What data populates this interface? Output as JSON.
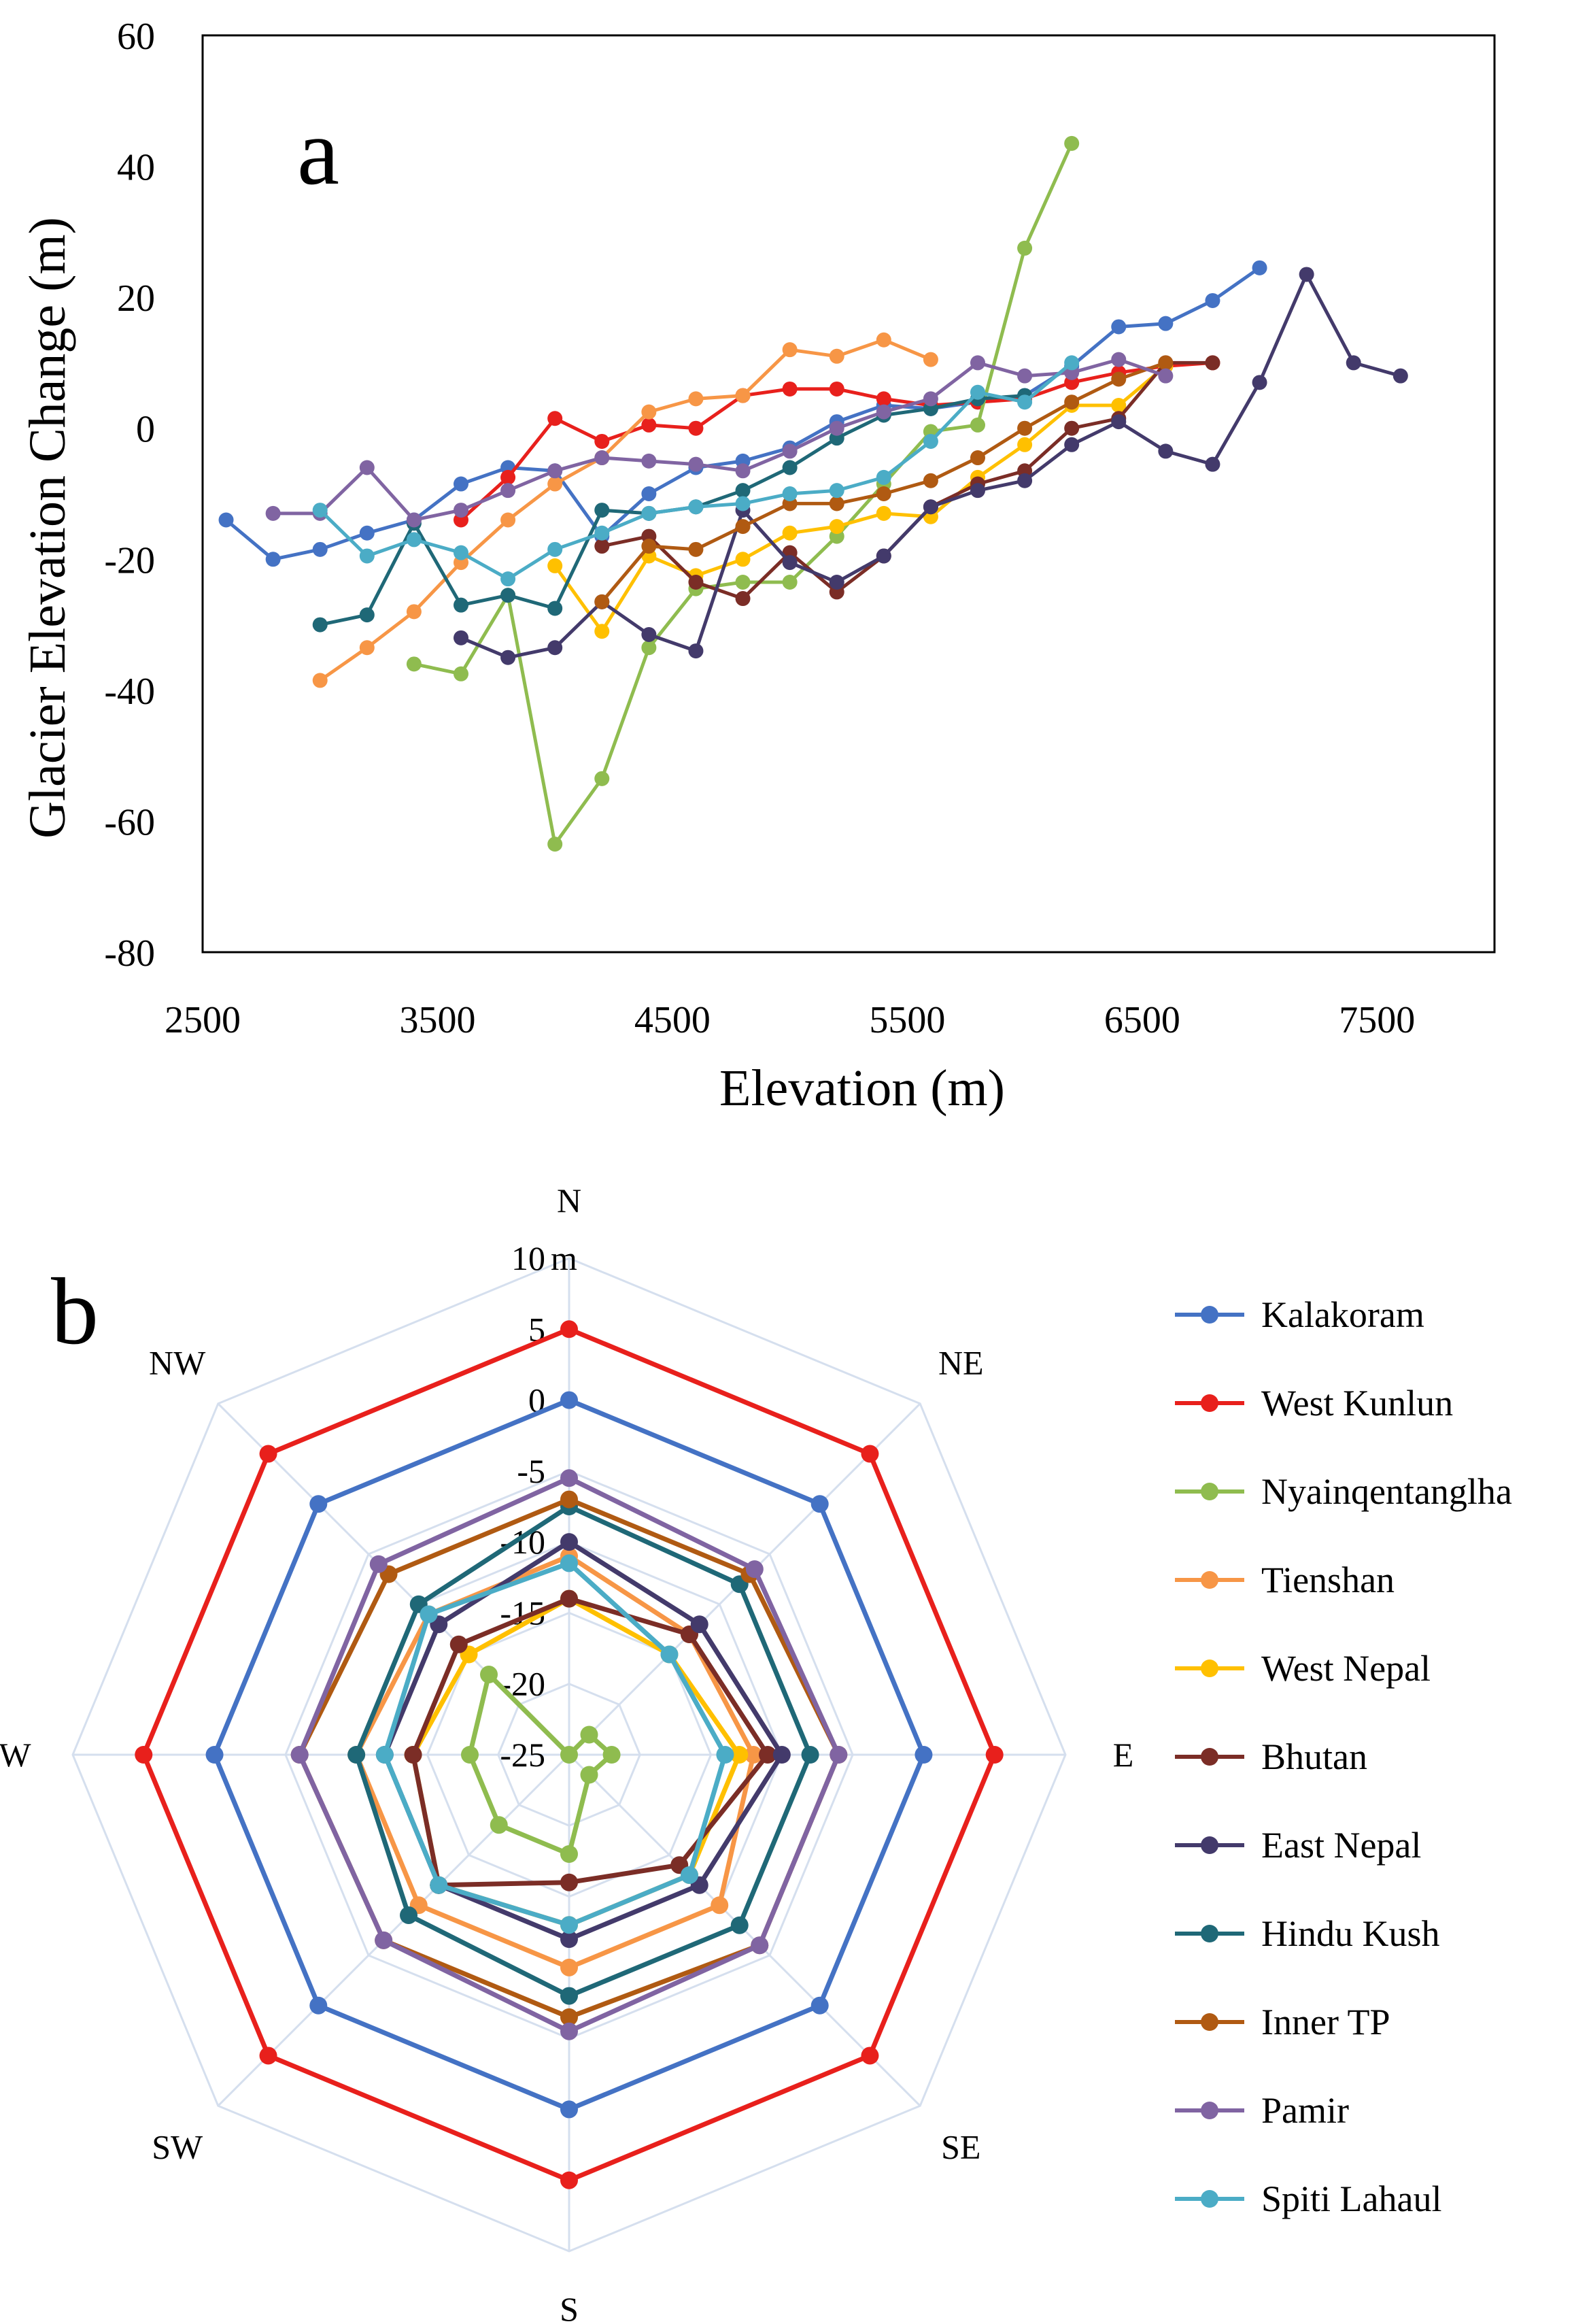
{
  "chart_data": [
    {
      "type": "line",
      "panel_label": "a",
      "xlabel": "Elevation (m)",
      "ylabel": "Glacier Elevation Change (m)",
      "xlim": [
        2500,
        8000
      ],
      "ylim": [
        -80,
        60
      ],
      "xticks": [
        2500,
        3500,
        4500,
        5500,
        6500,
        7500
      ],
      "yticks": [
        -80,
        -60,
        -40,
        -20,
        0,
        20,
        40,
        60
      ],
      "grid": false,
      "series": [
        {
          "name": "Kalakoram",
          "color": "#4472C4",
          "points": [
            [
              2600,
              -14
            ],
            [
              2800,
              -20
            ],
            [
              3000,
              -18.5
            ],
            [
              3200,
              -16
            ],
            [
              3400,
              -14
            ],
            [
              3600,
              -8.5
            ],
            [
              3800,
              -6
            ],
            [
              4000,
              -6.5
            ],
            [
              4200,
              -16.5
            ],
            [
              4400,
              -10
            ],
            [
              4600,
              -6
            ],
            [
              4800,
              -5
            ],
            [
              5000,
              -3
            ],
            [
              5200,
              1
            ],
            [
              5400,
              3.5
            ],
            [
              5600,
              3
            ],
            [
              5800,
              4
            ],
            [
              6000,
              5
            ],
            [
              6200,
              9.5
            ],
            [
              6400,
              15.5
            ],
            [
              6600,
              16
            ],
            [
              6800,
              19.5
            ],
            [
              7000,
              24.5
            ]
          ]
        },
        {
          "name": "West Kunlun",
          "color": "#E8201C",
          "points": [
            [
              3600,
              -14
            ],
            [
              3800,
              -7.5
            ],
            [
              4000,
              1.5
            ],
            [
              4200,
              -2
            ],
            [
              4400,
              0.5
            ],
            [
              4600,
              0
            ],
            [
              4800,
              5
            ],
            [
              5000,
              6
            ],
            [
              5200,
              6
            ],
            [
              5400,
              4.5
            ],
            [
              5600,
              3.5
            ],
            [
              5800,
              4
            ],
            [
              6000,
              4.5
            ],
            [
              6200,
              7
            ],
            [
              6400,
              8.5
            ],
            [
              6600,
              9.5
            ],
            [
              6800,
              10
            ]
          ]
        },
        {
          "name": "Nyainqentanglha",
          "color": "#8FBC4F",
          "points": [
            [
              3400,
              -36
            ],
            [
              3600,
              -37.5
            ],
            [
              3800,
              -25.5
            ],
            [
              4000,
              -63.5
            ],
            [
              4200,
              -53.5
            ],
            [
              4400,
              -33.5
            ],
            [
              4600,
              -24.5
            ],
            [
              4800,
              -23.5
            ],
            [
              5000,
              -23.5
            ],
            [
              5200,
              -16.5
            ],
            [
              5400,
              -8.5
            ],
            [
              5600,
              -0.5
            ],
            [
              5800,
              0.5
            ],
            [
              6000,
              27.5
            ],
            [
              6200,
              43.5
            ]
          ]
        },
        {
          "name": "Tienshan",
          "color": "#F79646",
          "points": [
            [
              3000,
              -38.5
            ],
            [
              3200,
              -33.5
            ],
            [
              3400,
              -28
            ],
            [
              3600,
              -20.5
            ],
            [
              3800,
              -14
            ],
            [
              4000,
              -8.5
            ],
            [
              4200,
              -4.5
            ],
            [
              4400,
              2.5
            ],
            [
              4600,
              4.5
            ],
            [
              4800,
              5
            ],
            [
              5000,
              12
            ],
            [
              5200,
              11
            ],
            [
              5400,
              13.5
            ],
            [
              5600,
              10.5
            ]
          ]
        },
        {
          "name": "West Nepal",
          "color": "#FFC000",
          "points": [
            [
              4000,
              -21
            ],
            [
              4200,
              -31
            ],
            [
              4400,
              -19.5
            ],
            [
              4600,
              -22.5
            ],
            [
              4800,
              -20
            ],
            [
              5000,
              -16
            ],
            [
              5200,
              -15
            ],
            [
              5400,
              -13
            ],
            [
              5600,
              -13.5
            ],
            [
              5800,
              -7.5
            ],
            [
              6000,
              -2.5
            ],
            [
              6200,
              3.5
            ],
            [
              6400,
              3.5
            ],
            [
              6600,
              9.5
            ]
          ]
        },
        {
          "name": "Bhutan",
          "color": "#7B2D26",
          "points": [
            [
              4200,
              -18
            ],
            [
              4400,
              -16.5
            ],
            [
              4600,
              -23.5
            ],
            [
              4800,
              -26
            ],
            [
              5000,
              -19
            ],
            [
              5200,
              -25
            ],
            [
              5400,
              -19.5
            ],
            [
              5600,
              -12
            ],
            [
              5800,
              -8.5
            ],
            [
              6000,
              -6.5
            ],
            [
              6200,
              0
            ],
            [
              6400,
              1.5
            ],
            [
              6600,
              10
            ],
            [
              6800,
              10
            ]
          ]
        },
        {
          "name": "East Nepal",
          "color": "#433A6B",
          "points": [
            [
              3600,
              -32
            ],
            [
              3800,
              -35
            ],
            [
              4000,
              -33.5
            ],
            [
              4200,
              -26.5
            ],
            [
              4400,
              -31.5
            ],
            [
              4600,
              -34
            ],
            [
              4800,
              -12.5
            ],
            [
              5000,
              -20.5
            ],
            [
              5200,
              -23.5
            ],
            [
              5400,
              -19.5
            ],
            [
              5600,
              -12
            ],
            [
              5800,
              -9.5
            ],
            [
              6000,
              -8
            ],
            [
              6200,
              -2.5
            ],
            [
              6400,
              1
            ],
            [
              6600,
              -3.5
            ],
            [
              6800,
              -5.5
            ],
            [
              7000,
              7
            ],
            [
              7200,
              23.5
            ],
            [
              7400,
              10
            ],
            [
              7600,
              8
            ]
          ]
        },
        {
          "name": "Hindu Kush",
          "color": "#1F6877",
          "points": [
            [
              3000,
              -30
            ],
            [
              3200,
              -28.5
            ],
            [
              3400,
              -14.5
            ],
            [
              3600,
              -27
            ],
            [
              3800,
              -25.5
            ],
            [
              4000,
              -27.5
            ],
            [
              4200,
              -12.5
            ],
            [
              4400,
              -13
            ],
            [
              4600,
              -12
            ],
            [
              4800,
              -9.5
            ],
            [
              5000,
              -6
            ],
            [
              5200,
              -1.5
            ],
            [
              5400,
              2
            ],
            [
              5600,
              3
            ],
            [
              5800,
              4.5
            ],
            [
              6000,
              5
            ]
          ]
        },
        {
          "name": "Inner TP",
          "color": "#B05A12",
          "points": [
            [
              4200,
              -26.5
            ],
            [
              4400,
              -18
            ],
            [
              4600,
              -18.5
            ],
            [
              4800,
              -15
            ],
            [
              5000,
              -11.5
            ],
            [
              5200,
              -11.5
            ],
            [
              5400,
              -10
            ],
            [
              5600,
              -8
            ],
            [
              5800,
              -4.5
            ],
            [
              6000,
              0
            ],
            [
              6200,
              4
            ],
            [
              6400,
              7.5
            ],
            [
              6600,
              10
            ]
          ]
        },
        {
          "name": "Pamir",
          "color": "#8064A2",
          "points": [
            [
              2800,
              -13
            ],
            [
              3000,
              -13
            ],
            [
              3200,
              -6
            ],
            [
              3400,
              -14
            ],
            [
              3600,
              -12.5
            ],
            [
              3800,
              -9.5
            ],
            [
              4000,
              -6.5
            ],
            [
              4200,
              -4.5
            ],
            [
              4400,
              -5
            ],
            [
              4600,
              -5.5
            ],
            [
              4800,
              -6.5
            ],
            [
              5000,
              -3.5
            ],
            [
              5200,
              0
            ],
            [
              5400,
              2.5
            ],
            [
              5600,
              4.5
            ],
            [
              5800,
              10
            ],
            [
              6000,
              8
            ],
            [
              6200,
              8.5
            ],
            [
              6400,
              10.5
            ],
            [
              6600,
              8
            ]
          ]
        },
        {
          "name": "Spiti Lahaul",
          "color": "#4BACC6",
          "points": [
            [
              3000,
              -12.5
            ],
            [
              3200,
              -19.5
            ],
            [
              3400,
              -17
            ],
            [
              3600,
              -19
            ],
            [
              3800,
              -23
            ],
            [
              4000,
              -18.5
            ],
            [
              4200,
              -16
            ],
            [
              4400,
              -13
            ],
            [
              4600,
              -12
            ],
            [
              4800,
              -11.5
            ],
            [
              5000,
              -10
            ],
            [
              5200,
              -9.5
            ],
            [
              5400,
              -7.5
            ],
            [
              5600,
              -2
            ],
            [
              5800,
              5.5
            ],
            [
              6000,
              4
            ],
            [
              6200,
              10
            ]
          ]
        }
      ]
    },
    {
      "type": "radar",
      "panel_label": "b",
      "unit_label": "m",
      "directions": [
        "N",
        "NE",
        "E",
        "SE",
        "S",
        "SW",
        "W",
        "NW"
      ],
      "range": [
        -25,
        10
      ],
      "ring_values": [
        10,
        5,
        0,
        -5,
        -10,
        -15,
        -20,
        -25
      ],
      "legend_position": "right",
      "series": [
        {
          "name": "Kalakoram",
          "color": "#4472C4",
          "values": [
            0,
            0,
            0,
            0,
            0,
            0,
            0,
            0
          ]
        },
        {
          "name": "West Kunlun",
          "color": "#E8201C",
          "values": [
            5,
            5,
            5,
            5,
            5,
            5,
            5,
            5
          ]
        },
        {
          "name": "Nyainqentanglha",
          "color": "#8FBC4F",
          "values": [
            -25,
            -23,
            -22,
            -23,
            -18,
            -18,
            -18,
            -17
          ]
        },
        {
          "name": "Tienshan",
          "color": "#F79646",
          "values": [
            -11,
            -13,
            -12,
            -10,
            -10,
            -10,
            -10,
            -11
          ]
        },
        {
          "name": "West Nepal",
          "color": "#FFC000",
          "values": [
            -14,
            -15,
            -13,
            -13,
            -13,
            -12,
            -14,
            -15
          ]
        },
        {
          "name": "Bhutan",
          "color": "#7B2D26",
          "values": [
            -14,
            -13,
            -11,
            -14,
            -16,
            -12,
            -14,
            -14
          ]
        },
        {
          "name": "East Nepal",
          "color": "#433A6B",
          "values": [
            -10,
            -12,
            -10,
            -12,
            -12,
            -12,
            -12,
            -12
          ]
        },
        {
          "name": "Hindu Kush",
          "color": "#1F6877",
          "values": [
            -7.5,
            -8,
            -8,
            -8,
            -8,
            -9,
            -10,
            -10
          ]
        },
        {
          "name": "Inner TP",
          "color": "#B05A12",
          "values": [
            -7,
            -7,
            -6,
            -6,
            -6.5,
            -6.5,
            -6,
            -7
          ]
        },
        {
          "name": "Pamir",
          "color": "#8064A2",
          "values": [
            -5.5,
            -6.5,
            -6,
            -6,
            -5.5,
            -6.5,
            -6,
            -6
          ]
        },
        {
          "name": "Spiti Lahaul",
          "color": "#4BACC6",
          "values": [
            -11.5,
            -15,
            -14,
            -13,
            -13,
            -12,
            -12,
            -11
          ]
        }
      ]
    }
  ]
}
